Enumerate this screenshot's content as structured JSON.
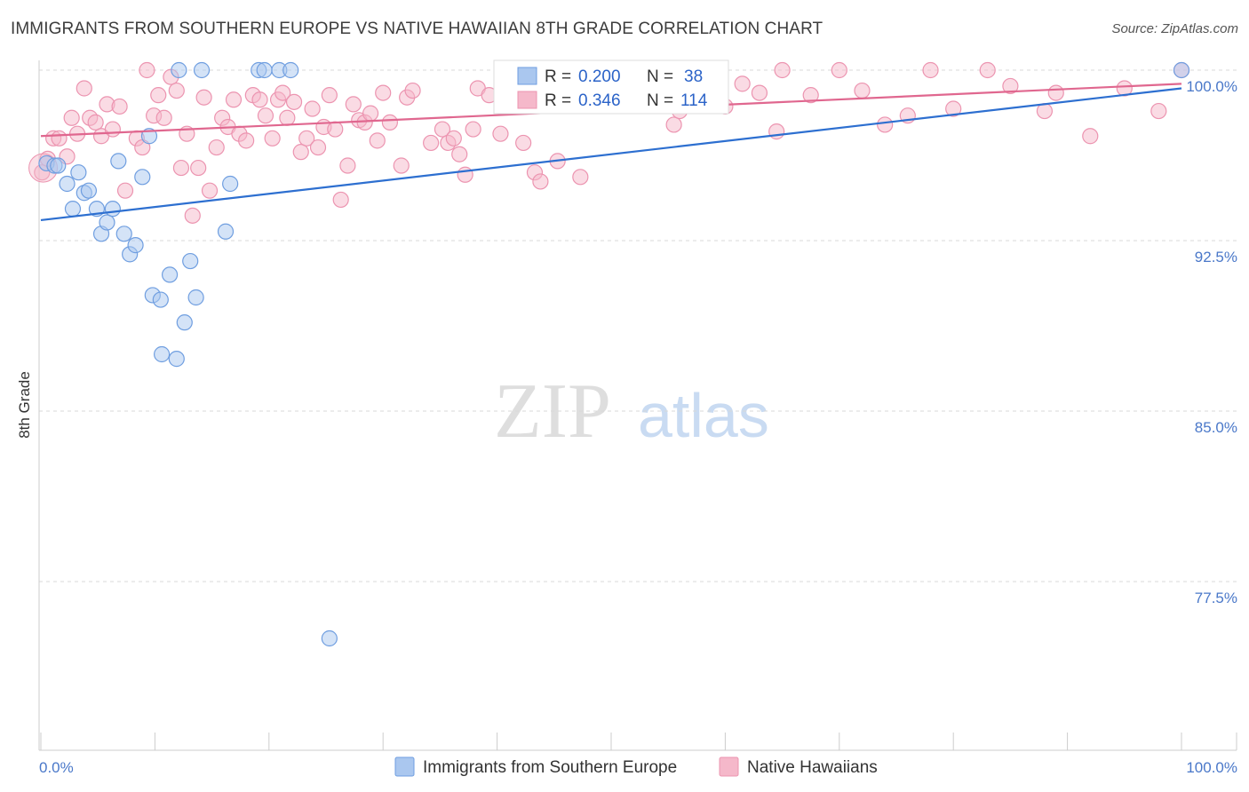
{
  "title": "IMMIGRANTS FROM SOUTHERN EUROPE VS NATIVE HAWAIIAN 8TH GRADE CORRELATION CHART",
  "source": "Source: ZipAtlas.com",
  "watermark": {
    "zip": "ZIP",
    "atlas": "atlas"
  },
  "colors": {
    "blue_fill": "#aac7ef",
    "blue_stroke": "#6f9ee0",
    "blue_line": "#2d6fd0",
    "pink_fill": "#f5b8ca",
    "pink_stroke": "#ec94b0",
    "pink_line": "#e0678f",
    "grid": "#d8d8d8",
    "axis_text": "#4a78c9"
  },
  "chart_data": {
    "type": "scatter",
    "title": "IMMIGRANTS FROM SOUTHERN EUROPE VS NATIVE HAWAIIAN 8TH GRADE CORRELATION CHART",
    "xlabel": "",
    "ylabel": "8th Grade",
    "xlim": [
      0,
      100
    ],
    "ylim": [
      70.0,
      100.8
    ],
    "y_ticks": [
      100.0,
      92.5,
      85.0,
      77.5
    ],
    "y_tick_labels": [
      "100.0%",
      "92.5%",
      "85.0%",
      "77.5%"
    ],
    "x_tick_labels": [
      "0.0%",
      "100.0%"
    ],
    "legend": {
      "rows": [
        {
          "r_label": "R =",
          "r_value": "0.200",
          "n_label": "N =",
          "n_value": "38"
        },
        {
          "r_label": "R =",
          "r_value": "0.346",
          "n_label": "N =",
          "n_value": "114"
        }
      ]
    },
    "series": [
      {
        "name": "Immigrants from Southern Europe",
        "color": "blue",
        "trend": {
          "x0": 0,
          "y0": 93.4,
          "x1": 100,
          "y1": 99.2
        },
        "points": [
          [
            0.5,
            95.9
          ],
          [
            1.2,
            95.8
          ],
          [
            1.5,
            95.8
          ],
          [
            2.3,
            95.0
          ],
          [
            2.8,
            93.9
          ],
          [
            3.3,
            95.5
          ],
          [
            3.8,
            94.6
          ],
          [
            4.2,
            94.7
          ],
          [
            4.9,
            93.9
          ],
          [
            5.3,
            92.8
          ],
          [
            5.8,
            93.3
          ],
          [
            6.3,
            93.9
          ],
          [
            6.8,
            96.0
          ],
          [
            7.3,
            92.8
          ],
          [
            7.8,
            91.9
          ],
          [
            8.3,
            92.3
          ],
          [
            8.9,
            95.3
          ],
          [
            9.5,
            97.1
          ],
          [
            9.8,
            90.1
          ],
          [
            10.5,
            89.9
          ],
          [
            10.6,
            87.5
          ],
          [
            11.3,
            91.0
          ],
          [
            11.9,
            87.3
          ],
          [
            12.1,
            100.0
          ],
          [
            12.6,
            88.9
          ],
          [
            13.1,
            91.6
          ],
          [
            13.6,
            90.0
          ],
          [
            14.1,
            100.0
          ],
          [
            16.2,
            92.9
          ],
          [
            16.6,
            95.0
          ],
          [
            19.1,
            100.0
          ],
          [
            19.6,
            100.0
          ],
          [
            20.9,
            100.0
          ],
          [
            21.9,
            100.0
          ],
          [
            25.3,
            75.0
          ],
          [
            100.0,
            100.0
          ]
        ]
      },
      {
        "name": "Native Hawaiians",
        "color": "pink",
        "trend": {
          "x0": 0,
          "y0": 97.1,
          "x1": 100,
          "y1": 99.4
        },
        "points": [
          [
            0.1,
            95.5
          ],
          [
            0.6,
            96.1
          ],
          [
            1.1,
            97.0
          ],
          [
            1.6,
            97.0
          ],
          [
            2.3,
            96.2
          ],
          [
            2.7,
            97.9
          ],
          [
            3.2,
            97.2
          ],
          [
            3.8,
            99.2
          ],
          [
            4.3,
            97.9
          ],
          [
            4.8,
            97.7
          ],
          [
            5.3,
            97.1
          ],
          [
            5.8,
            98.5
          ],
          [
            6.3,
            97.4
          ],
          [
            6.9,
            98.4
          ],
          [
            7.4,
            94.7
          ],
          [
            8.4,
            97.0
          ],
          [
            8.9,
            96.6
          ],
          [
            9.3,
            100.0
          ],
          [
            9.9,
            98.0
          ],
          [
            10.3,
            98.9
          ],
          [
            10.8,
            97.9
          ],
          [
            11.4,
            99.7
          ],
          [
            11.9,
            99.1
          ],
          [
            12.3,
            95.7
          ],
          [
            12.8,
            97.2
          ],
          [
            13.3,
            93.6
          ],
          [
            13.8,
            95.7
          ],
          [
            14.3,
            98.8
          ],
          [
            14.8,
            94.7
          ],
          [
            15.4,
            96.6
          ],
          [
            15.9,
            97.9
          ],
          [
            16.4,
            97.5
          ],
          [
            16.9,
            98.7
          ],
          [
            17.4,
            97.2
          ],
          [
            18.0,
            96.9
          ],
          [
            18.6,
            98.9
          ],
          [
            19.2,
            98.7
          ],
          [
            19.7,
            98.0
          ],
          [
            20.3,
            97.0
          ],
          [
            20.8,
            98.7
          ],
          [
            21.2,
            99.0
          ],
          [
            21.6,
            97.9
          ],
          [
            22.2,
            98.6
          ],
          [
            22.8,
            96.4
          ],
          [
            23.3,
            97.0
          ],
          [
            23.8,
            98.3
          ],
          [
            24.3,
            96.6
          ],
          [
            24.8,
            97.5
          ],
          [
            25.3,
            98.9
          ],
          [
            25.8,
            97.4
          ],
          [
            26.3,
            94.3
          ],
          [
            26.9,
            95.8
          ],
          [
            27.4,
            98.5
          ],
          [
            27.9,
            97.8
          ],
          [
            28.4,
            97.7
          ],
          [
            28.9,
            98.1
          ],
          [
            29.5,
            96.9
          ],
          [
            30.0,
            99.0
          ],
          [
            30.6,
            97.7
          ],
          [
            31.6,
            95.8
          ],
          [
            32.1,
            98.8
          ],
          [
            32.6,
            99.1
          ],
          [
            34.2,
            96.8
          ],
          [
            35.2,
            97.4
          ],
          [
            35.7,
            96.8
          ],
          [
            36.2,
            97.0
          ],
          [
            36.7,
            96.3
          ],
          [
            37.2,
            95.4
          ],
          [
            37.9,
            97.4
          ],
          [
            38.3,
            99.2
          ],
          [
            39.3,
            98.9
          ],
          [
            40.3,
            97.2
          ],
          [
            41.3,
            100.0
          ],
          [
            42.3,
            96.8
          ],
          [
            43.3,
            95.5
          ],
          [
            43.8,
            95.1
          ],
          [
            44.3,
            99.2
          ],
          [
            45.3,
            96.0
          ],
          [
            46.3,
            99.9
          ],
          [
            47.3,
            95.3
          ],
          [
            48.4,
            99.3
          ],
          [
            49.4,
            99.6
          ],
          [
            50.0,
            99.0
          ],
          [
            51.0,
            100.0
          ],
          [
            53.5,
            100.0
          ],
          [
            54.5,
            100.0
          ],
          [
            55.5,
            97.6
          ],
          [
            56.0,
            98.2
          ],
          [
            58.0,
            100.0
          ],
          [
            59.5,
            100.0
          ],
          [
            60.0,
            98.4
          ],
          [
            61.5,
            99.4
          ],
          [
            63.0,
            99.0
          ],
          [
            64.5,
            97.3
          ],
          [
            65.0,
            100.0
          ],
          [
            67.5,
            98.9
          ],
          [
            70.0,
            100.0
          ],
          [
            72.0,
            99.1
          ],
          [
            74.0,
            97.6
          ],
          [
            76.0,
            98.0
          ],
          [
            78.0,
            100.0
          ],
          [
            80.0,
            98.3
          ],
          [
            83.0,
            100.0
          ],
          [
            85.0,
            99.3
          ],
          [
            88.0,
            98.2
          ],
          [
            89.0,
            99.0
          ],
          [
            92.0,
            97.1
          ],
          [
            95.0,
            99.2
          ],
          [
            98.0,
            98.2
          ],
          [
            100.0,
            100.0
          ]
        ]
      }
    ],
    "bottom_legend": [
      "Immigrants from Southern Europe",
      "Native Hawaiians"
    ]
  }
}
